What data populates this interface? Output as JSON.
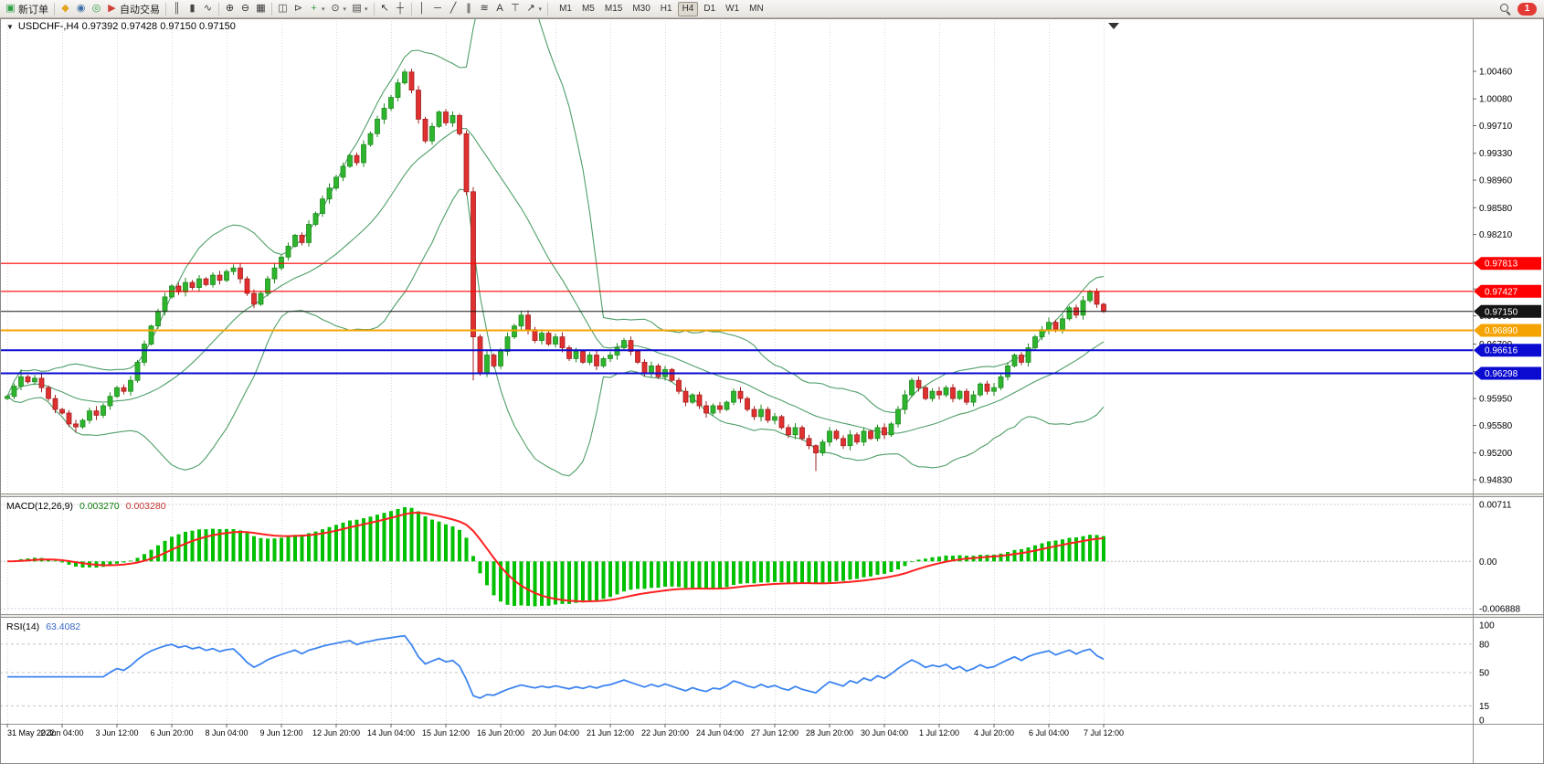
{
  "toolbar": {
    "notification_count": "1",
    "timeframes": [
      "M1",
      "M5",
      "M15",
      "M30",
      "H1",
      "H4",
      "D1",
      "W1",
      "MN"
    ],
    "active_timeframe": "H4",
    "items": [
      {
        "type": "btn",
        "name": "new-order-button",
        "glyph": "▣",
        "glyph_color": "#2f9e44",
        "label": "新订单"
      },
      {
        "type": "sep"
      },
      {
        "type": "btn",
        "name": "market-watch-button",
        "glyph": "◆",
        "glyph_color": "#e3a51f"
      },
      {
        "type": "btn",
        "name": "navigator-button",
        "glyph": "◉",
        "glyph_color": "#3a6ea5"
      },
      {
        "type": "btn",
        "name": "refresh-button",
        "glyph": "◎",
        "glyph_color": "#2f9e44"
      },
      {
        "type": "btn",
        "name": "autotrading-button",
        "glyph": "▶",
        "glyph_color": "#d04038",
        "label": "自动交易"
      },
      {
        "type": "sep"
      },
      {
        "type": "btn",
        "name": "chart-bars-button",
        "glyph": "║",
        "glyph_color": "#444"
      },
      {
        "type": "btn",
        "name": "chart-candles-button",
        "glyph": "▮",
        "glyph_color": "#444"
      },
      {
        "type": "btn",
        "name": "chart-line-button",
        "glyph": "∿",
        "glyph_color": "#444"
      },
      {
        "type": "sep"
      },
      {
        "type": "btn",
        "name": "zoom-in-button",
        "glyph": "⊕",
        "glyph_color": "#333"
      },
      {
        "type": "btn",
        "name": "zoom-out-button",
        "glyph": "⊖",
        "glyph_color": "#333"
      },
      {
        "type": "btn",
        "name": "tile-windows-button",
        "glyph": "▦",
        "glyph_color": "#333"
      },
      {
        "type": "sep"
      },
      {
        "type": "btn",
        "name": "indicator-list-button",
        "glyph": "◫",
        "glyph_color": "#444"
      },
      {
        "type": "btn",
        "name": "chart-shift-button",
        "glyph": "⊳",
        "glyph_color": "#444"
      },
      {
        "type": "btn",
        "name": "add-indicator-button",
        "glyph": "+",
        "glyph_color": "#2f9e44",
        "dropdown": true
      },
      {
        "type": "btn",
        "name": "period-menu-button",
        "glyph": "⊙",
        "glyph_color": "#444",
        "dropdown": true
      },
      {
        "type": "btn",
        "name": "template-menu-button",
        "glyph": "▤",
        "glyph_color": "#444",
        "dropdown": true
      },
      {
        "type": "sep"
      },
      {
        "type": "btn",
        "name": "cursor-button",
        "glyph": "↖",
        "glyph_color": "#333"
      },
      {
        "type": "btn",
        "name": "crosshair-button",
        "glyph": "┼",
        "glyph_color": "#333"
      },
      {
        "type": "sep"
      },
      {
        "type": "btn",
        "name": "vertical-line-button",
        "glyph": "│",
        "glyph_color": "#333"
      },
      {
        "type": "btn",
        "name": "horizontal-line-button",
        "glyph": "─",
        "glyph_color": "#333"
      },
      {
        "type": "btn",
        "name": "trendline-button",
        "glyph": "╱",
        "glyph_color": "#333"
      },
      {
        "type": "btn",
        "name": "channel-button",
        "glyph": "∥",
        "glyph_color": "#333"
      },
      {
        "type": "btn",
        "name": "fibonacci-button",
        "glyph": "≋",
        "glyph_color": "#333"
      },
      {
        "type": "btn",
        "name": "text-button",
        "glyph": "A",
        "glyph_color": "#333"
      },
      {
        "type": "btn",
        "name": "label-button",
        "glyph": "⊤",
        "glyph_color": "#333"
      },
      {
        "type": "btn",
        "name": "arrows-button",
        "glyph": "↗",
        "glyph_color": "#333",
        "dropdown": true
      },
      {
        "type": "sep"
      }
    ]
  },
  "chart_data": {
    "type": "candlestick",
    "symbol": "USDCHF",
    "period": "H4",
    "title_line": "USDCHF-,H4  0.97392 0.97428 0.97150 0.97150",
    "ohlc_readout": {
      "open": "0.97392",
      "high": "0.97428",
      "low": "0.97150",
      "close": "0.97150"
    },
    "y_ticks": [
      "1.00460",
      "1.00080",
      "0.99710",
      "0.99330",
      "0.98960",
      "0.98580",
      "0.98210",
      "0.97830",
      "0.97460",
      "0.97090",
      "0.96700",
      "0.96320",
      "0.95950",
      "0.95580",
      "0.95200",
      "0.94830"
    ],
    "x_labels": [
      "31 May 2022",
      "2 Jun 04:00",
      "3 Jun 12:00",
      "6 Jun 20:00",
      "8 Jun 04:00",
      "9 Jun 12:00",
      "12 Jun 20:00",
      "14 Jun 04:00",
      "15 Jun 12:00",
      "16 Jun 20:00",
      "20 Jun 04:00",
      "21 Jun 12:00",
      "22 Jun 20:00",
      "24 Jun 04:00",
      "27 Jun 12:00",
      "28 Jun 20:00",
      "30 Jun 04:00",
      "1 Jul 12:00",
      "4 Jul 20:00",
      "6 Jul 04:00",
      "7 Jul 12:00"
    ],
    "x_label_step": 8,
    "candles": {
      "first_open": 0.9595,
      "default_wick": 0.0009,
      "closes": [
        0.9598,
        0.9612,
        0.9625,
        0.9618,
        0.9623,
        0.961,
        0.9595,
        0.958,
        0.9575,
        0.956,
        0.9556,
        0.9565,
        0.9578,
        0.9572,
        0.9585,
        0.9598,
        0.961,
        0.9605,
        0.962,
        0.9645,
        0.967,
        0.9695,
        0.9715,
        0.9735,
        0.975,
        0.9742,
        0.9755,
        0.9748,
        0.976,
        0.9752,
        0.9765,
        0.9758,
        0.977,
        0.9775,
        0.976,
        0.974,
        0.9725,
        0.974,
        0.976,
        0.9775,
        0.979,
        0.9805,
        0.982,
        0.981,
        0.9835,
        0.985,
        0.987,
        0.9885,
        0.99,
        0.9915,
        0.993,
        0.992,
        0.9945,
        0.996,
        0.998,
        0.9995,
        1.001,
        1.003,
        1.0045,
        1.002,
        0.998,
        0.995,
        0.997,
        0.999,
        0.9975,
        0.9985,
        0.996,
        0.988,
        0.968,
        0.963,
        0.9655,
        0.964,
        0.966,
        0.968,
        0.9695,
        0.971,
        0.969,
        0.9675,
        0.9685,
        0.967,
        0.968,
        0.9665,
        0.965,
        0.966,
        0.9645,
        0.9655,
        0.964,
        0.965,
        0.9655,
        0.9665,
        0.9675,
        0.966,
        0.9645,
        0.963,
        0.964,
        0.9625,
        0.9635,
        0.962,
        0.9605,
        0.959,
        0.96,
        0.9585,
        0.9575,
        0.9585,
        0.958,
        0.959,
        0.9605,
        0.9595,
        0.958,
        0.957,
        0.958,
        0.9565,
        0.957,
        0.9555,
        0.9545,
        0.9555,
        0.954,
        0.953,
        0.952,
        0.9535,
        0.955,
        0.954,
        0.953,
        0.9545,
        0.9535,
        0.955,
        0.954,
        0.9555,
        0.9545,
        0.956,
        0.958,
        0.96,
        0.962,
        0.961,
        0.9595,
        0.9605,
        0.96,
        0.961,
        0.9595,
        0.9605,
        0.959,
        0.96,
        0.9615,
        0.9605,
        0.961,
        0.9625,
        0.964,
        0.9655,
        0.9645,
        0.9665,
        0.968,
        0.969,
        0.97,
        0.969,
        0.9705,
        0.972,
        0.971,
        0.973,
        0.9742,
        0.9725,
        0.9715
      ],
      "high_overrides": {
        "2": 0.9635,
        "58": 1.0049,
        "75": 0.9716,
        "158": 0.9745
      },
      "low_overrides": {
        "10": 0.9548,
        "68": 0.962,
        "118": 0.9495
      }
    },
    "bollinger": {
      "period": 20,
      "deviation": 2.0,
      "color": "#4f9e68"
    },
    "levels": [
      {
        "price": 0.97813,
        "label": "0.97813",
        "color": "#ff0000",
        "width": 1.2
      },
      {
        "price": 0.97427,
        "label": "0.97427",
        "color": "#ff0000",
        "width": 1.2
      },
      {
        "price": 0.9715,
        "label": "0.97150",
        "color": "#151515",
        "width": 1
      },
      {
        "price": 0.9689,
        "label": "0.96890",
        "color": "#f5a300",
        "width": 2
      },
      {
        "price": 0.96616,
        "label": "0.96616",
        "color": "#0a0ad0",
        "width": 2
      },
      {
        "price": 0.96298,
        "label": "0.96298",
        "color": "#0a0ad0",
        "width": 2
      }
    ],
    "macd": {
      "label": "MACD(12,26,9)",
      "value_main": "0.003270",
      "value_signal": "0.003280",
      "fast": 12,
      "slow": 26,
      "signal_period": 9,
      "axis_top": "0.00711",
      "axis_zero": "0.00",
      "axis_bottom": "-0.006888",
      "histogram_color": "#00c000",
      "signal_color": "#ff2020"
    },
    "rsi": {
      "label": "RSI(14)",
      "value": "63.4082",
      "period": 14,
      "level_lines": [
        80,
        50,
        15
      ],
      "scale_labels": [
        {
          "v": 100,
          "t": "100"
        },
        {
          "v": 80,
          "t": "80"
        },
        {
          "v": 50,
          "t": "50"
        },
        {
          "v": 15,
          "t": "15"
        },
        {
          "v": 0,
          "t": "0"
        }
      ],
      "line_color": "#3d85f0"
    },
    "colors": {
      "up": "#2db52d",
      "up_border": "#1e8a1e",
      "down": "#e03030",
      "down_border": "#a31f1f",
      "grid": "#d9d9d9",
      "axis_text": "#000000",
      "panel_border": "#919191"
    }
  }
}
